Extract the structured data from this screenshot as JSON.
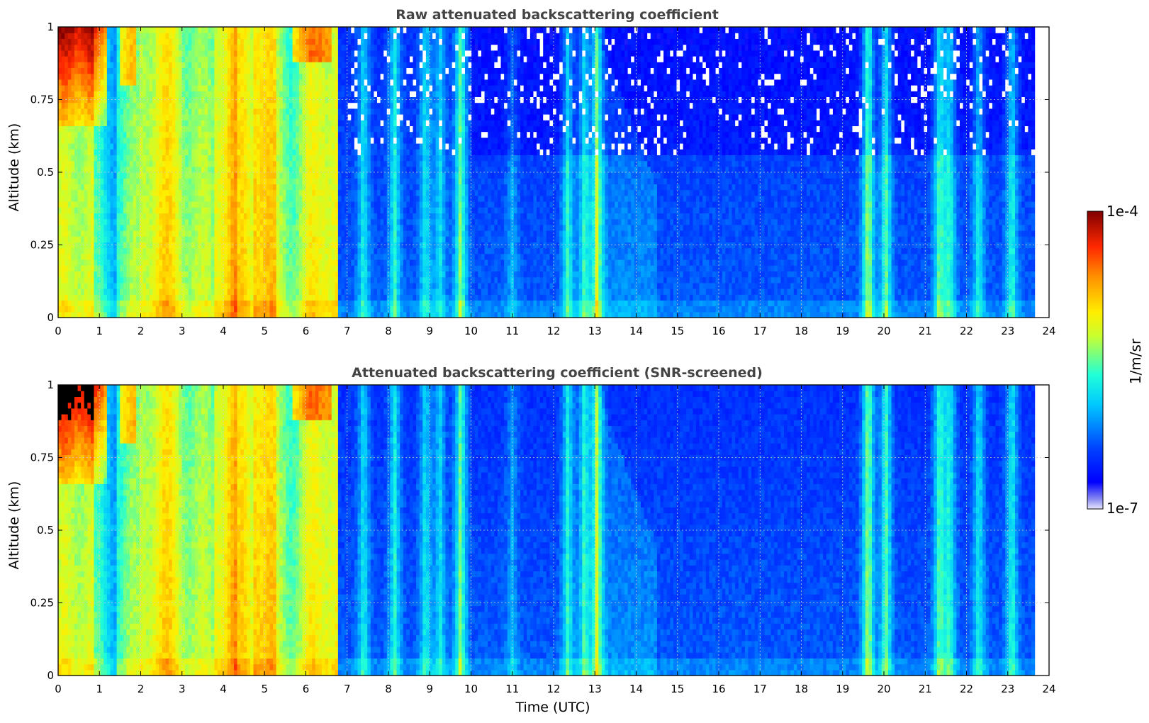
{
  "chart_data": [
    {
      "type": "heatmap",
      "title": "Raw attenuated backscattering coefficient",
      "xlabel": "",
      "ylabel": "Altitude (km)",
      "xlim": [
        0,
        24
      ],
      "ylim": [
        0,
        1
      ],
      "x_ticks": [
        0,
        1,
        2,
        3,
        4,
        5,
        6,
        7,
        8,
        9,
        10,
        11,
        12,
        13,
        14,
        15,
        16,
        17,
        18,
        19,
        20,
        21,
        22,
        23,
        24
      ],
      "y_ticks": [
        0,
        0.25,
        0.5,
        0.75,
        1
      ],
      "y_tick_labels": [
        "0",
        "0.25",
        "0.5",
        "0.75",
        "1"
      ],
      "grid": true,
      "data_end_time": 23.65,
      "screened": false
    },
    {
      "type": "heatmap",
      "title": "Attenuated backscattering coefficient (SNR-screened)",
      "xlabel": "Time (UTC)",
      "ylabel": "Altitude (km)",
      "xlim": [
        0,
        24
      ],
      "ylim": [
        0,
        1
      ],
      "x_ticks": [
        0,
        1,
        2,
        3,
        4,
        5,
        6,
        7,
        8,
        9,
        10,
        11,
        12,
        13,
        14,
        15,
        16,
        17,
        18,
        19,
        20,
        21,
        22,
        23,
        24
      ],
      "y_ticks": [
        0,
        0.25,
        0.5,
        0.75,
        1
      ],
      "y_tick_labels": [
        "0",
        "0.25",
        "0.5",
        "0.75",
        "1"
      ],
      "grid": true,
      "data_end_time": 23.65,
      "screened": true
    }
  ],
  "colorbar": {
    "label": "1/m/sr",
    "max_label": "1e-4",
    "min_label": "1e-7",
    "colormap": "jet",
    "scale": "log",
    "range": [
      1e-07,
      0.0001
    ]
  },
  "colors": {
    "title": "#444444",
    "grid": "#cccccc",
    "saturated": "#000000"
  }
}
